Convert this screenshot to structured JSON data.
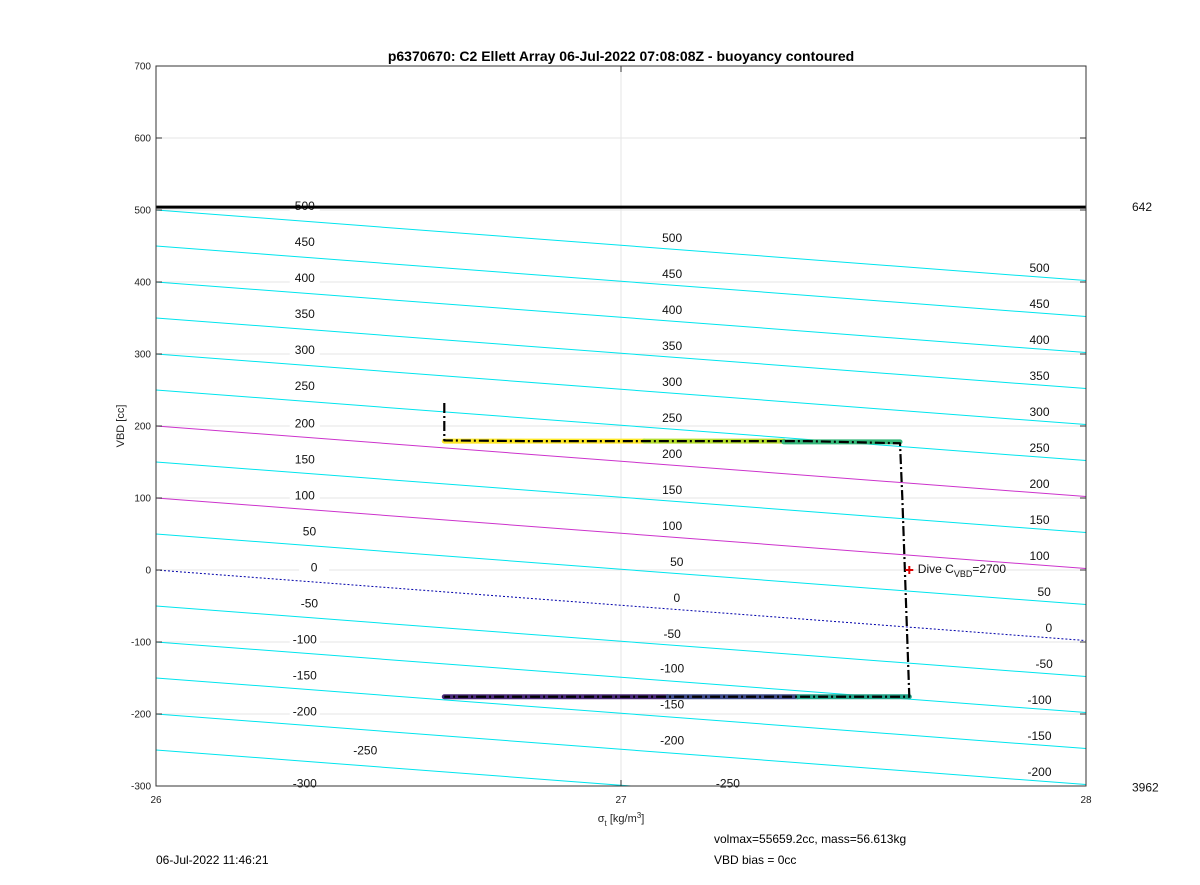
{
  "chart_data": {
    "type": "line",
    "title": "p6370670: C2 Ellett Array 06-Jul-2022 07:08:08Z - buoyancy contoured",
    "xlabel": "σt [kg/m3]",
    "xlabel_main": "σ",
    "xlabel_sub": "t",
    "xlabel_unit": " [kg/m",
    "xlabel_sup": "3",
    "xlabel_end": "]",
    "ylabel": "VBD [cc]",
    "xlim": [
      26,
      28
    ],
    "ylim": [
      -300,
      700
    ],
    "xticks": [
      "26",
      "27",
      "28"
    ],
    "yticks": [
      "-300",
      "-200",
      "-100",
      "0",
      "100",
      "200",
      "300",
      "400",
      "500",
      "600",
      "700"
    ],
    "grid": true,
    "right_labels": [
      {
        "text": "642",
        "y": 504
      },
      {
        "text": "3962",
        "y": -302
      }
    ],
    "max_vbd_line": 504,
    "contour_slope": -49,
    "buoyancy_contours": [
      {
        "level": -300,
        "y0": -300,
        "color": "#00e5ee"
      },
      {
        "level": -250,
        "y0": -250,
        "color": "#00e5ee"
      },
      {
        "level": -200,
        "y0": -200,
        "color": "#00e5ee"
      },
      {
        "level": -150,
        "y0": -150,
        "color": "#00e5ee"
      },
      {
        "level": -100,
        "y0": -100,
        "color": "#00e5ee"
      },
      {
        "level": -50,
        "y0": -50,
        "color": "#00e5ee"
      },
      {
        "level": 0,
        "y0": 0,
        "color": "#0000aa",
        "dashed": true
      },
      {
        "level": 50,
        "y0": 50,
        "color": "#00e5ee"
      },
      {
        "level": 100,
        "y0": 100,
        "color": "#cc33cc"
      },
      {
        "level": 150,
        "y0": 150,
        "color": "#00e5ee"
      },
      {
        "level": 200,
        "y0": 200,
        "color": "#cc33cc"
      },
      {
        "level": 250,
        "y0": 250,
        "color": "#00e5ee"
      },
      {
        "level": 300,
        "y0": 300,
        "color": "#00e5ee"
      },
      {
        "level": 350,
        "y0": 350,
        "color": "#00e5ee"
      },
      {
        "level": 400,
        "y0": 400,
        "color": "#00e5ee"
      },
      {
        "level": 450,
        "y0": 450,
        "color": "#00e5ee"
      },
      {
        "level": 500,
        "y0": 500,
        "color": "#00e5ee"
      }
    ],
    "contour_labels": [
      {
        "text": "500",
        "x": 26.32,
        "y": 506
      },
      {
        "text": "450",
        "x": 26.32,
        "y": 456
      },
      {
        "text": "400",
        "x": 26.32,
        "y": 406
      },
      {
        "text": "350",
        "x": 26.32,
        "y": 356
      },
      {
        "text": "300",
        "x": 26.32,
        "y": 306
      },
      {
        "text": "250",
        "x": 26.32,
        "y": 256
      },
      {
        "text": "200",
        "x": 26.32,
        "y": 204
      },
      {
        "text": "150",
        "x": 26.32,
        "y": 154
      },
      {
        "text": "100",
        "x": 26.32,
        "y": 104
      },
      {
        "text": "50",
        "x": 26.33,
        "y": 54
      },
      {
        "text": "0",
        "x": 26.34,
        "y": 4
      },
      {
        "text": "-50",
        "x": 26.33,
        "y": -46
      },
      {
        "text": "-100",
        "x": 26.32,
        "y": -96
      },
      {
        "text": "-150",
        "x": 26.32,
        "y": -146
      },
      {
        "text": "-200",
        "x": 26.32,
        "y": -196
      },
      {
        "text": "-250",
        "x": 26.45,
        "y": -250
      },
      {
        "text": "-300",
        "x": 26.32,
        "y": -296
      },
      {
        "text": "500",
        "x": 27.11,
        "y": 462
      },
      {
        "text": "450",
        "x": 27.11,
        "y": 412
      },
      {
        "text": "400",
        "x": 27.11,
        "y": 362
      },
      {
        "text": "350",
        "x": 27.11,
        "y": 312
      },
      {
        "text": "300",
        "x": 27.11,
        "y": 262
      },
      {
        "text": "250",
        "x": 27.11,
        "y": 212
      },
      {
        "text": "200",
        "x": 27.11,
        "y": 162
      },
      {
        "text": "150",
        "x": 27.11,
        "y": 112
      },
      {
        "text": "100",
        "x": 27.11,
        "y": 62
      },
      {
        "text": "50",
        "x": 27.12,
        "y": 12
      },
      {
        "text": "0",
        "x": 27.12,
        "y": -38
      },
      {
        "text": "-50",
        "x": 27.11,
        "y": -88
      },
      {
        "text": "-100",
        "x": 27.11,
        "y": -136
      },
      {
        "text": "-150",
        "x": 27.11,
        "y": -186
      },
      {
        "text": "-200",
        "x": 27.11,
        "y": -236
      },
      {
        "text": "-250",
        "x": 27.23,
        "y": -296
      },
      {
        "text": "500",
        "x": 27.9,
        "y": 420
      },
      {
        "text": "450",
        "x": 27.9,
        "y": 370
      },
      {
        "text": "400",
        "x": 27.9,
        "y": 320
      },
      {
        "text": "350",
        "x": 27.9,
        "y": 270
      },
      {
        "text": "300",
        "x": 27.9,
        "y": 220
      },
      {
        "text": "250",
        "x": 27.9,
        "y": 170
      },
      {
        "text": "200",
        "x": 27.9,
        "y": 120
      },
      {
        "text": "150",
        "x": 27.9,
        "y": 70
      },
      {
        "text": "100",
        "x": 27.9,
        "y": 20
      },
      {
        "text": "50",
        "x": 27.91,
        "y": -30
      },
      {
        "text": "0",
        "x": 27.92,
        "y": -80
      },
      {
        "text": "-50",
        "x": 27.91,
        "y": -130
      },
      {
        "text": "-100",
        "x": 27.9,
        "y": -180
      },
      {
        "text": "-150",
        "x": 27.9,
        "y": -230
      },
      {
        "text": "-200",
        "x": 27.9,
        "y": -280
      }
    ],
    "series": [
      {
        "name": "",
        "color": "#000000",
        "x": [
          26.62,
          26.62,
          26.8,
          27.0,
          27.2,
          27.4,
          27.6,
          27.605,
          27.62,
          27.6,
          27.4,
          27.2,
          27.0,
          26.8,
          26.62
        ],
        "y": [
          232,
          180,
          179,
          179,
          179,
          179,
          176,
          100,
          -176,
          -176,
          -176,
          -176,
          -176,
          -176,
          -176
        ]
      }
    ],
    "colored_segments": [
      {
        "x1": 26.62,
        "x2": 27.05,
        "y": 179,
        "color": "#fde725"
      },
      {
        "x1": 27.05,
        "x2": 27.35,
        "y": 179,
        "color": "#b5de2b"
      },
      {
        "x1": 27.35,
        "x2": 27.6,
        "y": 178,
        "color": "#35b779"
      },
      {
        "x1": 26.62,
        "x2": 27.1,
        "y": -176,
        "color": "#482878"
      },
      {
        "x1": 27.1,
        "x2": 27.38,
        "y": -176,
        "color": "#3e4a89"
      },
      {
        "x1": 27.38,
        "x2": 27.62,
        "y": -176,
        "color": "#1fa187"
      }
    ],
    "marker": {
      "x": 27.62,
      "y": 0,
      "color": "#dd0000"
    },
    "annotation": {
      "prefix": "Dive C",
      "sub": "VBD",
      "suffix": "=2700",
      "x": 27.72,
      "y": 0
    }
  },
  "footer": {
    "info_line1": "volmax=55659.2cc, mass=56.613kg",
    "info_line2": "VBD bias = 0cc",
    "timestamp": "06-Jul-2022 11:46:21"
  }
}
